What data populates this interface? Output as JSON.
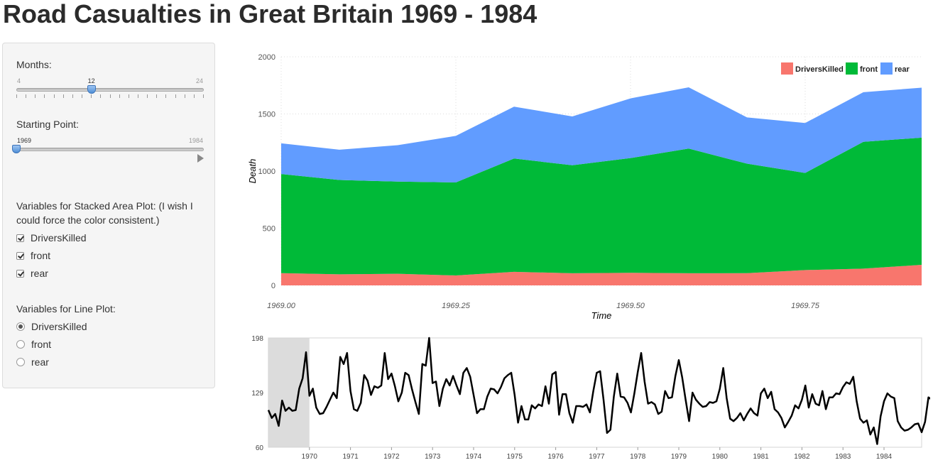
{
  "page": {
    "title": "Road Casualties in Great Britain 1969 - 1984"
  },
  "controls": {
    "months": {
      "label": "Months:",
      "min_label": "4",
      "max_label": "24",
      "value_label": "12",
      "min": 4,
      "max": 24,
      "value": 12
    },
    "start": {
      "label": "Starting Point:",
      "min_label": "1969",
      "max_label": "1984",
      "min": 1969,
      "max": 1984,
      "value": 1969
    },
    "stack_vars": {
      "label": "Variables for Stacked Area Plot: (I wish I could force the color consistent.)",
      "options": [
        {
          "label": "DriversKilled",
          "checked": true
        },
        {
          "label": "front",
          "checked": true
        },
        {
          "label": "rear",
          "checked": true
        }
      ]
    },
    "line_vars": {
      "label": "Variables for Line Plot:",
      "options": [
        {
          "label": "DriversKilled",
          "selected": true
        },
        {
          "label": "front",
          "selected": false
        },
        {
          "label": "rear",
          "selected": false
        }
      ]
    }
  },
  "chart_data": [
    {
      "type": "area",
      "stacked": true,
      "xlabel": "Time",
      "ylabel": "Death",
      "xlim": [
        1969.0,
        1969.9167
      ],
      "ylim": [
        0,
        2000
      ],
      "x_ticks": [
        1969.0,
        1969.25,
        1969.5,
        1969.75
      ],
      "x_tick_labels": [
        "1969.00",
        "1969.25",
        "1969.50",
        "1969.75"
      ],
      "y_ticks": [
        0,
        500,
        1000,
        1500,
        2000
      ],
      "y_tick_labels": [
        "0",
        "500",
        "1000",
        "1500",
        "2000"
      ],
      "grid": true,
      "legend": "top-right",
      "x": [
        1969.0,
        1969.0833,
        1969.1667,
        1969.25,
        1969.3333,
        1969.4167,
        1969.5,
        1969.5833,
        1969.6667,
        1969.75,
        1969.8333,
        1969.9167
      ],
      "series": [
        {
          "name": "DriversKilled",
          "color": "#F8766D",
          "values": [
            107,
            97,
            102,
            87,
            119,
            106,
            110,
            106,
            107,
            134,
            147,
            180
          ]
        },
        {
          "name": "front",
          "color": "#00BA38",
          "values": [
            867,
            825,
            806,
            814,
            991,
            945,
            1004,
            1091,
            958,
            850,
            1109,
            1113
          ]
        },
        {
          "name": "rear",
          "color": "#619CFF",
          "values": [
            269,
            265,
            319,
            407,
            454,
            427,
            522,
            536,
            405,
            437,
            434,
            437
          ]
        }
      ]
    },
    {
      "type": "line",
      "series_name": "DriversKilled",
      "color": "#000000",
      "xlim": [
        1969.0,
        1984.9167
      ],
      "ylim": [
        60,
        198
      ],
      "y_tick_labels": [
        "60",
        "129",
        "198"
      ],
      "y_ticks": [
        60,
        129,
        198
      ],
      "x_tick_labels": [
        "1970",
        "1971",
        "1972",
        "1973",
        "1974",
        "1975",
        "1976",
        "1977",
        "1978",
        "1979",
        "1980",
        "1981",
        "1982",
        "1983",
        "1984"
      ],
      "x_ticks": [
        1970,
        1971,
        1972,
        1973,
        1974,
        1975,
        1976,
        1977,
        1978,
        1979,
        1980,
        1981,
        1982,
        1983,
        1984
      ],
      "selection": [
        1969.0,
        1970.0
      ],
      "start": 1969,
      "step": 0.08333333,
      "values": [
        107,
        97,
        102,
        87,
        119,
        106,
        110,
        106,
        107,
        134,
        147,
        180,
        125,
        134,
        110,
        102,
        103,
        111,
        120,
        129,
        122,
        174,
        165,
        179,
        131,
        108,
        106,
        116,
        151,
        144,
        126,
        137,
        135,
        138,
        179,
        146,
        153,
        137,
        118,
        129,
        154,
        151,
        133,
        117,
        102,
        165,
        163,
        198,
        141,
        143,
        112,
        134,
        146,
        138,
        150,
        138,
        127,
        154,
        160,
        149,
        126,
        103,
        108,
        108,
        124,
        134,
        133,
        128,
        136,
        147,
        151,
        154,
        126,
        91,
        112,
        95,
        95,
        113,
        109,
        114,
        112,
        137,
        115,
        152,
        155,
        101,
        127,
        127,
        103,
        91,
        112,
        112,
        111,
        114,
        104,
        131,
        154,
        156,
        120,
        78,
        82,
        124,
        153,
        124,
        123,
        116,
        104,
        128,
        155,
        179,
        143,
        115,
        117,
        114,
        102,
        105,
        131,
        122,
        123,
        150,
        170,
        148,
        120,
        93,
        129,
        120,
        115,
        111,
        112,
        117,
        116,
        118,
        134,
        160,
        122,
        96,
        93,
        97,
        103,
        94,
        102,
        109,
        103,
        100,
        128,
        134,
        122,
        130,
        108,
        104,
        97,
        85,
        92,
        100,
        113,
        109,
        120,
        138,
        110,
        127,
        115,
        113,
        131,
        108,
        123,
        123,
        128,
        127,
        136,
        142,
        140,
        149,
        118,
        96,
        91,
        94,
        76,
        85,
        64,
        99,
        118,
        128,
        124,
        122,
        93,
        85,
        81,
        82,
        85,
        89,
        90,
        79,
        92,
        123,
        120,
        148
      ]
    }
  ]
}
